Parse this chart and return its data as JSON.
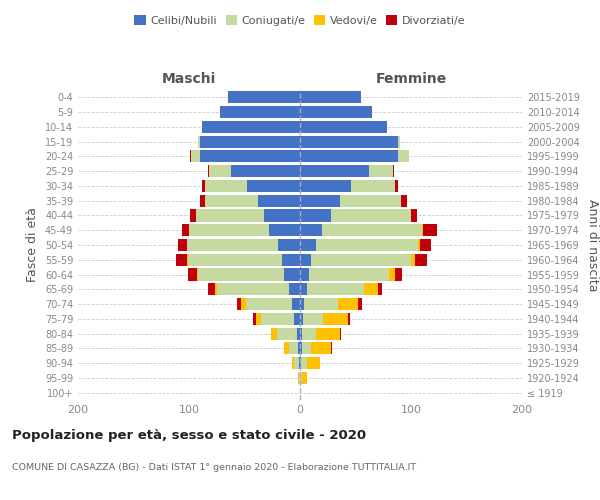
{
  "age_groups": [
    "100+",
    "95-99",
    "90-94",
    "85-89",
    "80-84",
    "75-79",
    "70-74",
    "65-69",
    "60-64",
    "55-59",
    "50-54",
    "45-49",
    "40-44",
    "35-39",
    "30-34",
    "25-29",
    "20-24",
    "15-19",
    "10-14",
    "5-9",
    "0-4"
  ],
  "birth_years": [
    "≤ 1919",
    "1920-1924",
    "1925-1929",
    "1930-1934",
    "1935-1939",
    "1940-1944",
    "1945-1949",
    "1950-1954",
    "1955-1959",
    "1960-1964",
    "1965-1969",
    "1970-1974",
    "1975-1979",
    "1980-1984",
    "1985-1989",
    "1990-1994",
    "1995-1999",
    "2000-2004",
    "2005-2009",
    "2010-2014",
    "2015-2019"
  ],
  "male": {
    "celibi": [
      0,
      0,
      1,
      2,
      3,
      5,
      7,
      10,
      14,
      16,
      20,
      28,
      32,
      38,
      48,
      62,
      90,
      90,
      88,
      72,
      65
    ],
    "coniugati": [
      0,
      1,
      4,
      8,
      18,
      30,
      42,
      65,
      78,
      85,
      82,
      72,
      62,
      48,
      38,
      20,
      8,
      2,
      0,
      0,
      0
    ],
    "vedovi": [
      0,
      1,
      2,
      4,
      5,
      5,
      4,
      2,
      1,
      1,
      0,
      0,
      0,
      0,
      0,
      0,
      0,
      0,
      0,
      0,
      0
    ],
    "divorziati": [
      0,
      0,
      0,
      0,
      0,
      2,
      4,
      6,
      8,
      10,
      8,
      6,
      5,
      4,
      2,
      1,
      1,
      0,
      0,
      0,
      0
    ]
  },
  "female": {
    "nubili": [
      0,
      0,
      1,
      2,
      2,
      3,
      4,
      6,
      8,
      10,
      14,
      20,
      28,
      36,
      46,
      62,
      88,
      88,
      78,
      65,
      55
    ],
    "coniugate": [
      0,
      2,
      5,
      8,
      12,
      18,
      30,
      52,
      72,
      90,
      92,
      90,
      72,
      55,
      40,
      22,
      10,
      2,
      0,
      0,
      0
    ],
    "vedove": [
      0,
      4,
      12,
      18,
      22,
      22,
      18,
      12,
      6,
      4,
      2,
      1,
      0,
      0,
      0,
      0,
      0,
      0,
      0,
      0,
      0
    ],
    "divorziate": [
      0,
      0,
      0,
      1,
      1,
      2,
      4,
      4,
      6,
      10,
      10,
      12,
      5,
      5,
      2,
      1,
      0,
      0,
      0,
      0,
      0
    ]
  },
  "colors": {
    "celibi": "#4472c4",
    "coniugati": "#c5d9a0",
    "vedovi": "#ffc000",
    "divorziati": "#c0000b"
  },
  "xlim": 200,
  "title": "Popolazione per età, sesso e stato civile - 2020",
  "subtitle": "COMUNE DI CASAZZA (BG) - Dati ISTAT 1° gennaio 2020 - Elaborazione TUTTITALIA.IT",
  "ylabel": "Fasce di età",
  "right_ylabel": "Anni di nascita",
  "legend_labels": [
    "Celibi/Nubili",
    "Coniugati/e",
    "Vedovi/e",
    "Divorziati/e"
  ],
  "male_label": "Maschi",
  "female_label": "Femmine",
  "bg_color": "#ffffff",
  "tick_color": "#888888",
  "grid_color": "#cccccc",
  "label_color": "#555555",
  "title_color": "#222222",
  "subtitle_color": "#666666"
}
